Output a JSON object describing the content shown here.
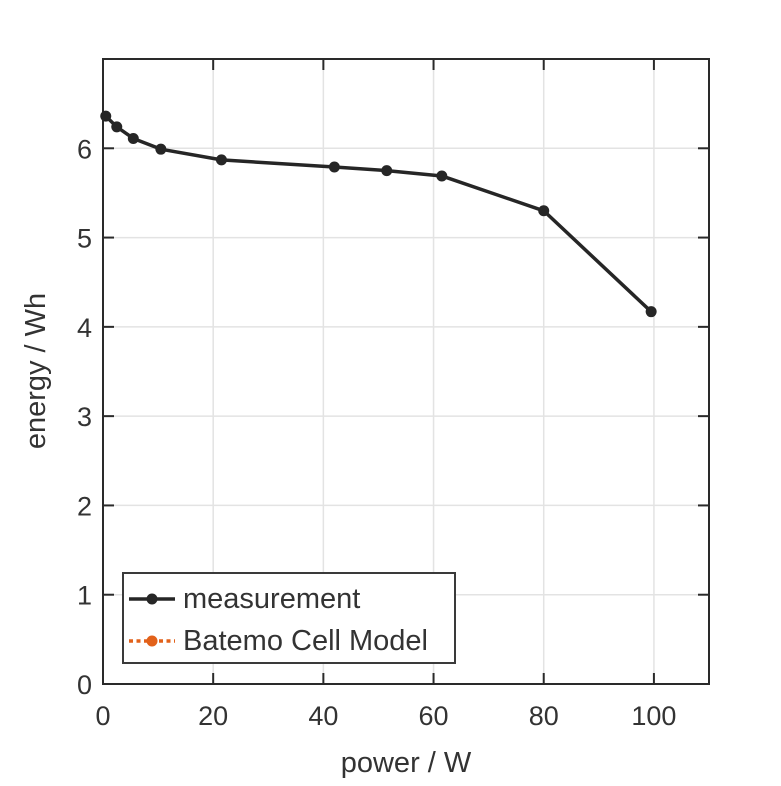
{
  "chart_data": {
    "type": "line",
    "title": "",
    "xlabel": "power / W",
    "ylabel": "energy / Wh",
    "xlim": [
      0,
      110
    ],
    "ylim": [
      0,
      7
    ],
    "xticks": [
      0,
      20,
      40,
      60,
      80,
      100
    ],
    "yticks": [
      0,
      1,
      2,
      3,
      4,
      5,
      6
    ],
    "grid": true,
    "legend_position": "southwest",
    "series": [
      {
        "name": "measurement",
        "color": "#262626",
        "line_style": "solid",
        "marker": "filled-circle",
        "x": [
          0.5,
          2.5,
          5.5,
          10.5,
          21.5,
          42,
          51.5,
          61.5,
          80,
          99.5
        ],
        "y": [
          6.36,
          6.24,
          6.11,
          5.99,
          5.87,
          5.79,
          5.75,
          5.69,
          5.3,
          4.17
        ],
        "visible_in_plot": true
      },
      {
        "name": "Batemo Cell Model",
        "color": "#e2611a",
        "line_style": "dotted",
        "marker": "filled-circle",
        "x": [],
        "y": [],
        "visible_in_plot": false
      }
    ],
    "colors": {
      "axis": "#2a2a2a",
      "grid": "#e3e3e3",
      "text": "#333333",
      "legend_border": "#3a3a3a",
      "background": "#ffffff"
    }
  }
}
